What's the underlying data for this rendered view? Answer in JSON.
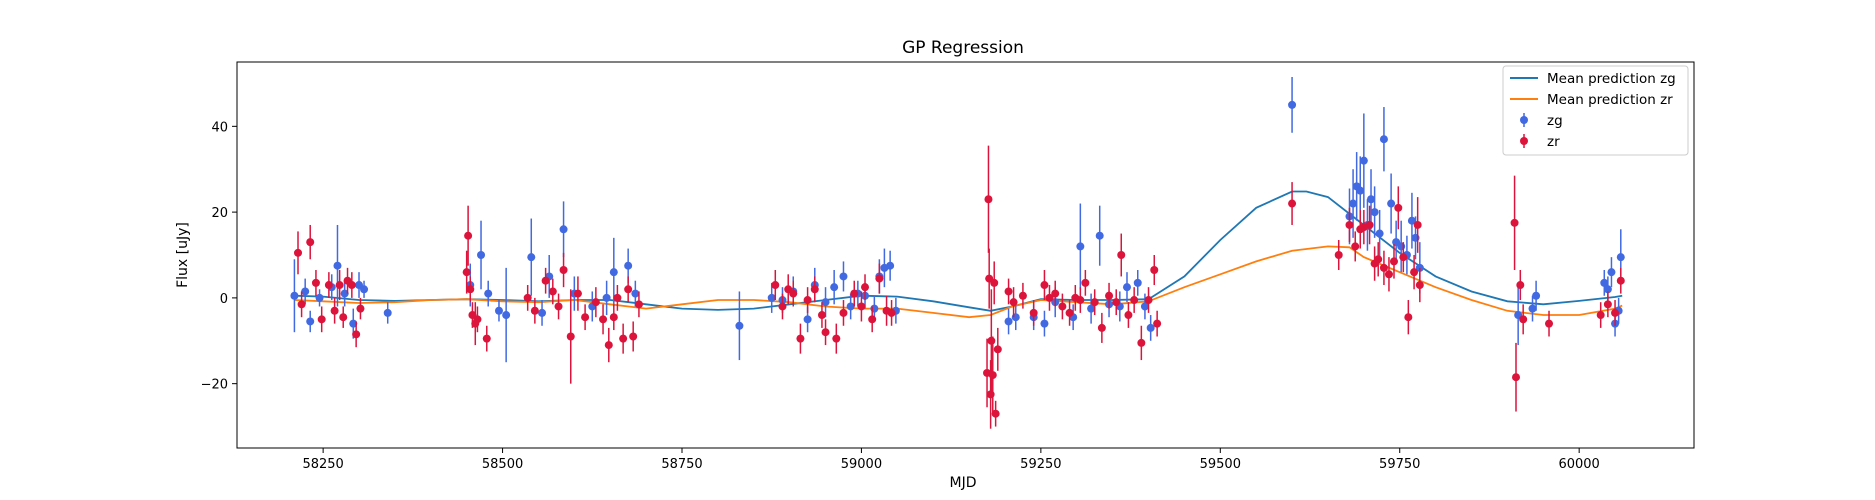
{
  "chart_data": {
    "type": "scatter",
    "title": "GP Regression",
    "xlabel": "MJD",
    "ylabel": "Flux [uJy]",
    "xlim": [
      58130,
      60160
    ],
    "ylim": [
      -35,
      55
    ],
    "xticks": [
      58250,
      58500,
      58750,
      59000,
      59250,
      59500,
      59750,
      60000
    ],
    "yticks": [
      -20,
      0,
      20,
      40
    ],
    "grid": false,
    "legend_position": "top-right",
    "lines": [
      {
        "name": "Mean prediction zg",
        "color": "#1f77b4",
        "x": [
          58210,
          58250,
          58300,
          58350,
          58400,
          58450,
          58500,
          58550,
          58600,
          58650,
          58700,
          58750,
          58800,
          58850,
          58900,
          58950,
          59000,
          59050,
          59100,
          59150,
          59180,
          59210,
          59250,
          59300,
          59350,
          59400,
          59450,
          59500,
          59550,
          59600,
          59620,
          59650,
          59700,
          59750,
          59800,
          59850,
          59900,
          59950,
          60000,
          60050,
          60060
        ],
        "y": [
          0.5,
          0.3,
          -0.5,
          -0.7,
          -0.5,
          -0.3,
          -0.5,
          -0.8,
          -0.5,
          -0.5,
          -1.5,
          -2.5,
          -2.8,
          -2.5,
          -1.5,
          -0.5,
          0.5,
          0.3,
          -0.8,
          -2.2,
          -3.0,
          -2.0,
          -0.3,
          -0.5,
          -0.5,
          -0.3,
          5.0,
          13.5,
          21.0,
          24.8,
          24.8,
          23.5,
          17.0,
          10.5,
          5.0,
          1.5,
          -0.8,
          -1.5,
          -0.7,
          0.2,
          0.5
        ]
      },
      {
        "name": "Mean prediction zr",
        "color": "#ff7f0e",
        "x": [
          58210,
          58250,
          58300,
          58350,
          58400,
          58450,
          58500,
          58550,
          58600,
          58650,
          58700,
          58750,
          58800,
          58850,
          58900,
          58950,
          59000,
          59050,
          59100,
          59150,
          59180,
          59210,
          59250,
          59300,
          59350,
          59400,
          59450,
          59500,
          59550,
          59600,
          59650,
          59680,
          59700,
          59750,
          59800,
          59850,
          59900,
          59950,
          60000,
          60050,
          60060
        ],
        "y": [
          -0.5,
          -0.8,
          -1.2,
          -1.0,
          -0.5,
          -0.3,
          -0.8,
          -1.0,
          -0.5,
          -1.5,
          -2.5,
          -1.5,
          -0.5,
          -0.5,
          -1.0,
          -2.0,
          -2.5,
          -2.5,
          -3.5,
          -4.5,
          -4.0,
          -2.0,
          -0.5,
          -1.0,
          -1.5,
          -0.8,
          2.5,
          5.5,
          8.5,
          11.0,
          12.0,
          11.8,
          9.5,
          6.0,
          2.5,
          -0.5,
          -3.0,
          -4.0,
          -4.0,
          -2.5,
          -1.8
        ]
      }
    ],
    "series": [
      {
        "name": "zg",
        "color": "#4169e1",
        "points": [
          [
            58210,
            0.5,
            8.5
          ],
          [
            58225,
            1.5,
            3
          ],
          [
            58232,
            -5.5,
            2.5
          ],
          [
            58245,
            0,
            2
          ],
          [
            58262,
            2.5,
            3
          ],
          [
            58270,
            7.5,
            9.5
          ],
          [
            58280,
            1,
            3
          ],
          [
            58292,
            -6,
            3.5
          ],
          [
            58300,
            3,
            3
          ],
          [
            58307,
            2,
            2
          ],
          [
            58340,
            -3.5,
            2.5
          ],
          [
            58455,
            3,
            5
          ],
          [
            58470,
            10,
            8
          ],
          [
            58480,
            1,
            3
          ],
          [
            58495,
            -3,
            2.5
          ],
          [
            58505,
            -4,
            11
          ],
          [
            58540,
            9.5,
            9
          ],
          [
            58555,
            -3.5,
            3
          ],
          [
            58565,
            5,
            5
          ],
          [
            58585,
            16,
            6.5
          ],
          [
            58600,
            1,
            4
          ],
          [
            58625,
            -2,
            3.5
          ],
          [
            58645,
            0,
            4
          ],
          [
            58655,
            6,
            8
          ],
          [
            58675,
            7.5,
            4
          ],
          [
            58685,
            1,
            3
          ],
          [
            58830,
            -6.5,
            8
          ],
          [
            58875,
            0,
            3.5
          ],
          [
            58890,
            -0.5,
            3
          ],
          [
            58905,
            1.5,
            3.5
          ],
          [
            58925,
            -5,
            3
          ],
          [
            58935,
            3,
            4
          ],
          [
            58950,
            -1,
            3.5
          ],
          [
            58962,
            2.5,
            4
          ],
          [
            58975,
            5,
            3.5
          ],
          [
            58985,
            -2,
            3
          ],
          [
            58995,
            1,
            3
          ],
          [
            59005,
            0.5,
            3
          ],
          [
            59018,
            -2.5,
            3
          ],
          [
            59025,
            5,
            4
          ],
          [
            59032,
            7,
            4.5
          ],
          [
            59040,
            7.5,
            3.5
          ],
          [
            59048,
            -3,
            3
          ],
          [
            59205,
            -5.5,
            3
          ],
          [
            59215,
            -4.5,
            3
          ],
          [
            59240,
            -4.5,
            3
          ],
          [
            59255,
            -6,
            3
          ],
          [
            59270,
            -1,
            3.5
          ],
          [
            59295,
            -4.5,
            3
          ],
          [
            59305,
            12,
            10
          ],
          [
            59320,
            -2.5,
            3.5
          ],
          [
            59332,
            14.5,
            7
          ],
          [
            59345,
            -1.5,
            3
          ],
          [
            59360,
            -2,
            3.5
          ],
          [
            59370,
            2.5,
            3.5
          ],
          [
            59385,
            3.5,
            3
          ],
          [
            59395,
            -2,
            3
          ],
          [
            59403,
            -7,
            3
          ],
          [
            59600,
            45,
            6.5
          ],
          [
            59680,
            19,
            6.5
          ],
          [
            59685,
            22,
            8
          ],
          [
            59690,
            26,
            8
          ],
          [
            59695,
            25,
            8
          ],
          [
            59700,
            32,
            11
          ],
          [
            59705,
            17,
            6
          ],
          [
            59710,
            23,
            7
          ],
          [
            59715,
            20,
            6
          ],
          [
            59722,
            15,
            5.5
          ],
          [
            59728,
            37,
            7.5
          ],
          [
            59738,
            22,
            7
          ],
          [
            59745,
            13,
            5
          ],
          [
            59752,
            12,
            6
          ],
          [
            59760,
            10,
            4.5
          ],
          [
            59767,
            18,
            6.5
          ],
          [
            59772,
            14,
            5
          ],
          [
            59778,
            7,
            6
          ],
          [
            59915,
            -4,
            7
          ],
          [
            59935,
            -2.5,
            3
          ],
          [
            59940,
            0.5,
            3.5
          ],
          [
            60035,
            3.5,
            3
          ],
          [
            60040,
            2,
            3
          ],
          [
            60045,
            6,
            3.5
          ],
          [
            60050,
            -6,
            3
          ],
          [
            60055,
            -3,
            3
          ],
          [
            60058,
            9.5,
            6.5
          ]
        ]
      },
      {
        "name": "zr",
        "color": "#dc143c",
        "points": [
          [
            58215,
            10.5,
            5
          ],
          [
            58220,
            -1.5,
            3
          ],
          [
            58232,
            13,
            4
          ],
          [
            58240,
            3.5,
            3
          ],
          [
            58248,
            -5,
            3
          ],
          [
            58258,
            3,
            3
          ],
          [
            58266,
            -3,
            3
          ],
          [
            58273,
            3,
            3.5
          ],
          [
            58278,
            -4.5,
            2.5
          ],
          [
            58284,
            4,
            3
          ],
          [
            58290,
            3,
            3
          ],
          [
            58296,
            -8.5,
            3
          ],
          [
            58302,
            -2.5,
            2.5
          ],
          [
            58450,
            6,
            5
          ],
          [
            58452,
            14.5,
            7
          ],
          [
            58455,
            2,
            3
          ],
          [
            58458,
            -4,
            3
          ],
          [
            58462,
            -6,
            5
          ],
          [
            58465,
            -5,
            3
          ],
          [
            58478,
            -9.5,
            3
          ],
          [
            58535,
            0,
            3
          ],
          [
            58545,
            -3,
            3
          ],
          [
            58560,
            4,
            3
          ],
          [
            58570,
            1.5,
            3
          ],
          [
            58578,
            -2,
            3
          ],
          [
            58585,
            6.5,
            4
          ],
          [
            58595,
            -9,
            11
          ],
          [
            58605,
            1,
            4
          ],
          [
            58615,
            -4.5,
            3
          ],
          [
            58630,
            -1,
            3.5
          ],
          [
            58640,
            -5,
            3.5
          ],
          [
            58648,
            -11,
            4
          ],
          [
            58655,
            -4.5,
            3
          ],
          [
            58660,
            0,
            3
          ],
          [
            58668,
            -9.5,
            3.5
          ],
          [
            58675,
            2,
            3
          ],
          [
            58682,
            -9,
            3.5
          ],
          [
            58690,
            -1.5,
            3
          ],
          [
            58880,
            3,
            3.5
          ],
          [
            58890,
            -2,
            3
          ],
          [
            58898,
            2,
            3.5
          ],
          [
            58905,
            1,
            3
          ],
          [
            58915,
            -9.5,
            3.5
          ],
          [
            58925,
            -0.5,
            3
          ],
          [
            58935,
            2,
            3
          ],
          [
            58945,
            -4,
            3
          ],
          [
            58950,
            -8,
            3
          ],
          [
            58965,
            -9.5,
            3.5
          ],
          [
            58975,
            -3.5,
            3
          ],
          [
            58990,
            1,
            3
          ],
          [
            59000,
            -2,
            3.5
          ],
          [
            59005,
            2.5,
            3
          ],
          [
            59015,
            -5,
            3
          ],
          [
            59025,
            4.5,
            3.5
          ],
          [
            59035,
            -3,
            3.5
          ],
          [
            59042,
            -3.5,
            3
          ],
          [
            59175,
            -17.5,
            8
          ],
          [
            59177,
            23,
            12.5
          ],
          [
            59178,
            4.5,
            7
          ],
          [
            59180,
            -22.5,
            8
          ],
          [
            59181,
            -10,
            12
          ],
          [
            59183,
            -18,
            9
          ],
          [
            59185,
            3.5,
            5
          ],
          [
            59187,
            -27,
            3
          ],
          [
            59190,
            -12,
            5
          ],
          [
            59205,
            1.5,
            3
          ],
          [
            59212,
            -1,
            3.5
          ],
          [
            59225,
            0.5,
            3
          ],
          [
            59240,
            -3.5,
            3
          ],
          [
            59255,
            3,
            3.5
          ],
          [
            59262,
            0,
            3
          ],
          [
            59270,
            1,
            3
          ],
          [
            59280,
            -2,
            3
          ],
          [
            59290,
            -3.5,
            3
          ],
          [
            59298,
            0,
            3
          ],
          [
            59305,
            -0.5,
            3
          ],
          [
            59312,
            3.5,
            3
          ],
          [
            59325,
            -1,
            3
          ],
          [
            59335,
            -7,
            3.5
          ],
          [
            59345,
            0.5,
            3
          ],
          [
            59355,
            -1,
            3
          ],
          [
            59362,
            10,
            5
          ],
          [
            59372,
            -4,
            3
          ],
          [
            59380,
            -0.5,
            3
          ],
          [
            59390,
            -10.5,
            4
          ],
          [
            59400,
            -0.5,
            3
          ],
          [
            59408,
            6.5,
            3.5
          ],
          [
            59412,
            -6,
            3
          ],
          [
            59600,
            22,
            5
          ],
          [
            59665,
            10,
            3.5
          ],
          [
            59680,
            17,
            4
          ],
          [
            59688,
            12,
            3.5
          ],
          [
            59695,
            16,
            4.5
          ],
          [
            59700,
            16.5,
            4
          ],
          [
            59708,
            17,
            4.5
          ],
          [
            59715,
            8,
            4
          ],
          [
            59720,
            9,
            4
          ],
          [
            59728,
            7,
            4
          ],
          [
            59735,
            5.5,
            4
          ],
          [
            59742,
            8.5,
            4
          ],
          [
            59748,
            21,
            5
          ],
          [
            59755,
            9.5,
            3.5
          ],
          [
            59762,
            -4.5,
            4
          ],
          [
            59770,
            6,
            4
          ],
          [
            59775,
            17,
            6.5
          ],
          [
            59778,
            3,
            4
          ],
          [
            59910,
            17.5,
            11
          ],
          [
            59912,
            -18.5,
            8
          ],
          [
            59918,
            3,
            3.5
          ],
          [
            59922,
            -5,
            3.5
          ],
          [
            59958,
            -6,
            3
          ],
          [
            60030,
            -4,
            3
          ],
          [
            60040,
            -1.5,
            3
          ],
          [
            60050,
            -3.5,
            3
          ],
          [
            60058,
            4,
            3
          ]
        ]
      }
    ]
  }
}
